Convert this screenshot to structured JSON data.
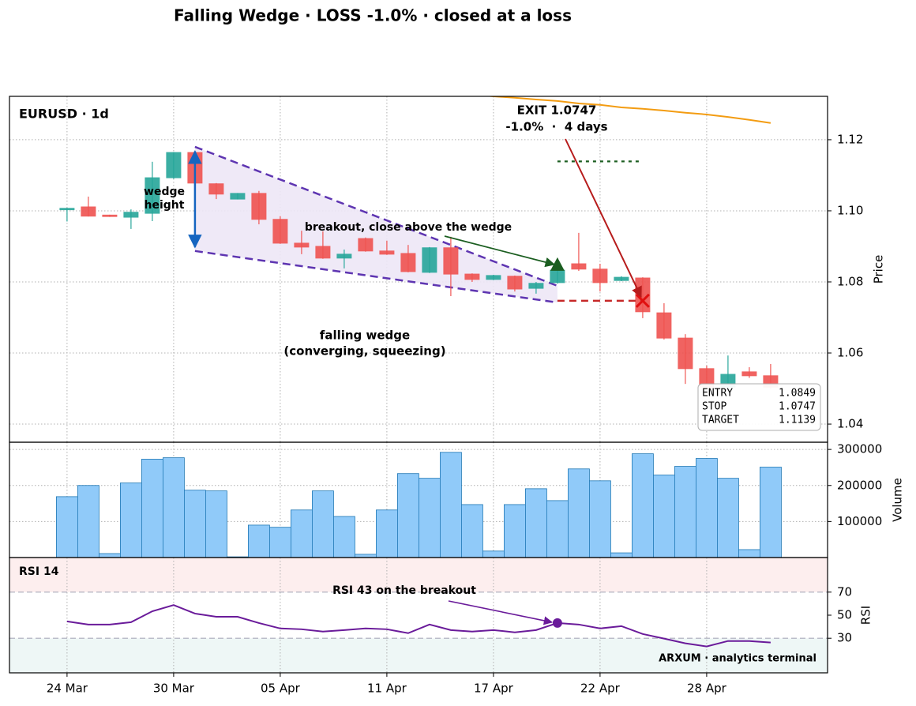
{
  "chart_data": [
    {
      "type": "candlestick",
      "title": "Falling Wedge · LOSS -1.0% · closed at a loss",
      "label": "EURUSD · 1d",
      "ylabel": "Price",
      "xlim": [
        -2.7,
        35.67
      ],
      "xticks": [
        {
          "value": 0,
          "label": "24 Mar"
        },
        {
          "value": 5,
          "label": "30 Mar"
        },
        {
          "value": 10,
          "label": "05 Apr"
        },
        {
          "value": 15,
          "label": "11 Apr"
        },
        {
          "value": 20,
          "label": "17 Apr"
        },
        {
          "value": 25,
          "label": "22 Apr"
        },
        {
          "value": 30,
          "label": "28 Apr"
        }
      ],
      "ylim": [
        1.0349,
        1.1322
      ],
      "yticks": [
        1.04,
        1.06,
        1.08,
        {
          "value": 1.1,
          "label": "1.10"
        },
        1.12
      ],
      "grid": true,
      "up_color": "#26a69a",
      "down_color": "#ef5350",
      "open": [
        1.1003,
        1.1011,
        1.0988,
        1.0982,
        1.0993,
        1.1093,
        1.1164,
        1.1076,
        1.1033,
        1.1049,
        1.0976,
        1.0909,
        1.09,
        1.0867,
        1.0922,
        1.0887,
        1.088,
        1.0827,
        1.0896,
        1.0822,
        1.0807,
        1.0816,
        1.0782,
        1.0798,
        1.0851,
        1.0836,
        1.0804,
        1.0811,
        1.0713,
        1.0642,
        1.0556,
        1.0504,
        1.0547,
        1.0536
      ],
      "high": [
        1.1008,
        1.104,
        1.0989,
        1.1004,
        1.1138,
        1.1165,
        1.1166,
        1.1078,
        1.105,
        1.1056,
        1.0985,
        1.0944,
        1.0942,
        1.0891,
        1.0925,
        1.0916,
        1.0904,
        1.0898,
        1.0927,
        1.0824,
        1.082,
        1.0818,
        1.08,
        1.0835,
        1.0938,
        1.0851,
        1.0816,
        1.0813,
        1.074,
        1.0653,
        1.0564,
        1.0593,
        1.056,
        1.0569
      ],
      "low": [
        1.097,
        1.0984,
        1.0983,
        1.0949,
        1.0971,
        1.109,
        1.1075,
        1.1033,
        1.1032,
        1.0962,
        1.0907,
        1.0878,
        1.0865,
        1.0838,
        1.0885,
        1.0876,
        1.0827,
        1.0825,
        1.076,
        1.08,
        1.0805,
        1.0773,
        1.0767,
        1.0795,
        1.0831,
        1.0773,
        1.0802,
        1.0698,
        1.0638,
        1.0513,
        1.05,
        1.05,
        1.053,
        1.05
      ],
      "close": [
        1.1007,
        1.0985,
        1.0984,
        1.0996,
        1.1093,
        1.1164,
        1.1078,
        1.1047,
        1.1049,
        1.0976,
        1.0909,
        1.0898,
        1.0867,
        1.0878,
        1.0887,
        1.0878,
        1.0829,
        1.0896,
        1.0822,
        1.0807,
        1.0818,
        1.078,
        1.0796,
        1.0833,
        1.0836,
        1.0798,
        1.0813,
        1.0716,
        1.0642,
        1.0556,
        1.0504,
        1.054,
        1.0536,
        1.0504
      ],
      "trend": {
        "color": "#f39c12",
        "values": [
          null,
          null,
          null,
          null,
          null,
          null,
          null,
          null,
          null,
          null,
          null,
          null,
          null,
          null,
          null,
          null,
          null,
          null,
          null,
          1.1328,
          1.1322,
          1.1318,
          1.1313,
          1.1309,
          1.1302,
          1.1298,
          1.1291,
          1.1287,
          1.1282,
          1.1276,
          1.1271,
          1.1264,
          1.1256,
          1.1247
        ]
      },
      "wedge": {
        "color": "#5e35b1",
        "fill": "#ede7f6",
        "upper": {
          "x": [
            6,
            23
          ],
          "values": [
            1.118,
            1.0789
          ]
        },
        "lower": {
          "x": [
            6,
            23
          ],
          "values": [
            1.0887,
            1.0742
          ]
        },
        "label": [
          "falling wedge",
          "(converging, squeezing)"
        ]
      },
      "wedge_height": {
        "x": 6,
        "values": [
          1.1167,
          1.0898
        ],
        "label": [
          "wedge",
          "height"
        ],
        "color": "#1565c0"
      },
      "breakout": {
        "text": "breakout, close above the wedge",
        "color": "#1b5e20"
      },
      "levels": {
        "entry": {
          "label": "ENTRY",
          "value": 1.0849,
          "x": 23,
          "color": "#1b5e20"
        },
        "stop": {
          "label": "STOP",
          "value": 1.0747,
          "x": [
            23,
            27
          ],
          "color": "#c62828"
        },
        "target": {
          "label": "TARGET",
          "value": 1.1139,
          "x": [
            23,
            27
          ],
          "color": "#1b5e20"
        }
      },
      "exit": {
        "x": 27,
        "value": 1.0747,
        "label": [
          "EXIT 1.0747",
          "-1.0%  ·  4 days"
        ],
        "color": "#b71c1c"
      }
    },
    {
      "type": "bar",
      "ylabel": "Volume",
      "ylim": [
        0,
        320000
      ],
      "yticks": [
        100000,
        200000,
        300000
      ],
      "grid": true,
      "color": "#90caf9",
      "edge_color": "#1f77b4",
      "values": [
        169000,
        200000,
        11000,
        207000,
        273000,
        277000,
        187000,
        185000,
        2000,
        90000,
        84000,
        132000,
        185000,
        114000,
        9000,
        132000,
        233000,
        220000,
        292000,
        147000,
        18000,
        147000,
        191000,
        158000,
        246000,
        213000,
        13000,
        288000,
        229000,
        253000,
        275000,
        220000,
        22000,
        251000
      ]
    },
    {
      "type": "line",
      "label": "RSI 14",
      "ylabel": "RSI",
      "ylim": [
        0,
        100
      ],
      "yticks": [
        30,
        50,
        70
      ],
      "color": "#6a1b9a",
      "overbought": 70,
      "oversold": 30,
      "values": [
        44.6,
        41.9,
        41.9,
        43.9,
        53.4,
        58.8,
        51.4,
        48.6,
        48.6,
        43.2,
        38.5,
        37.8,
        35.8,
        37.1,
        38.5,
        37.8,
        34.4,
        41.9,
        37.1,
        35.8,
        37.1,
        35.1,
        37.1,
        43.2,
        41.9,
        38.5,
        40.5,
        33.7,
        29.7,
        25.6,
        22.9,
        27.6,
        27.6,
        26.3
      ],
      "annotation": {
        "text": "RSI 43 on the breakout",
        "x": 23
      },
      "watermark": "ARXUM · analytics terminal"
    }
  ]
}
